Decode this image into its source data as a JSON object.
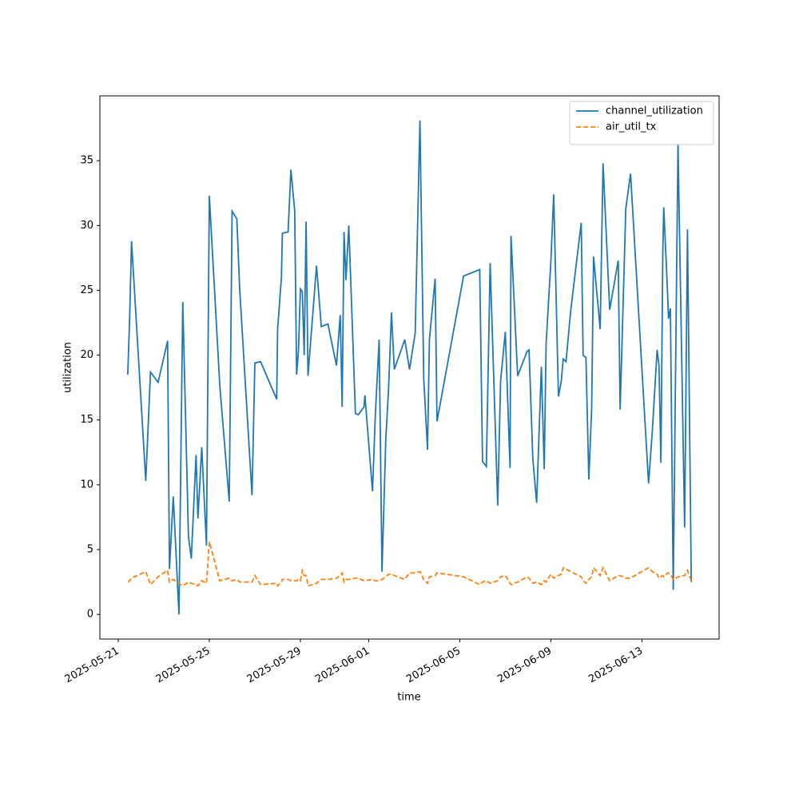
{
  "chart_data": {
    "type": "line",
    "xlabel": "time",
    "ylabel": "utilization",
    "x": [
      "2025-05-21T10:00",
      "2025-05-21T12:00",
      "2025-05-21T14:00",
      "2025-05-22T05:00",
      "2025-05-22T10:00",
      "2025-05-22T18:00",
      "2025-05-23T04:00",
      "2025-05-23T06:00",
      "2025-05-23T10:00",
      "2025-05-23T16:00",
      "2025-05-23T20:00",
      "2025-05-24T02:00",
      "2025-05-24T05:00",
      "2025-05-24T10:00",
      "2025-05-24T12:00",
      "2025-05-24T16:00",
      "2025-05-24T21:00",
      "2025-05-25T00:00",
      "2025-05-25T11:00",
      "2025-05-25T21:00",
      "2025-05-26T00:00",
      "2025-05-26T05:00",
      "2025-05-26T08:00",
      "2025-05-26T21:00",
      "2025-05-27T00:00",
      "2025-05-27T06:00",
      "2025-05-27T23:00",
      "2025-05-28T00:00",
      "2025-05-28T04:00",
      "2025-05-28T05:00",
      "2025-05-28T11:00",
      "2025-05-28T14:00",
      "2025-05-28T18:00",
      "2025-05-28T20:00",
      "2025-05-28T22:00",
      "2025-05-29T00:00",
      "2025-05-29T02:00",
      "2025-05-29T04:00",
      "2025-05-29T06:00",
      "2025-05-29T08:00",
      "2025-05-29T17:00",
      "2025-05-29T22:00",
      "2025-05-30T05:00",
      "2025-05-30T14:00",
      "2025-05-30T18:00",
      "2025-05-30T20:00",
      "2025-05-30T22:00",
      "2025-05-31T00:00",
      "2025-05-31T03:00",
      "2025-05-31T10:00",
      "2025-05-31T13:00",
      "2025-05-31T19:00",
      "2025-05-31T20:00",
      "2025-06-01T04:00",
      "2025-06-01T07:00",
      "2025-06-01T11:00",
      "2025-06-01T14:00",
      "2025-06-01T18:00",
      "2025-06-01T21:00",
      "2025-06-02T00:00",
      "2025-06-02T03:00",
      "2025-06-02T14:00",
      "2025-06-02T19:00",
      "2025-06-03T01:00",
      "2025-06-03T06:00",
      "2025-06-03T10:00",
      "2025-06-03T14:00",
      "2025-06-03T16:00",
      "2025-06-03T22:00",
      "2025-06-04T00:00",
      "2025-06-05T04:00",
      "2025-06-05T21:00",
      "2025-06-06T00:00",
      "2025-06-06T04:00",
      "2025-06-06T08:00",
      "2025-06-06T16:00",
      "2025-06-06T19:00",
      "2025-06-07T00:00",
      "2025-06-07T05:00",
      "2025-06-07T06:00",
      "2025-06-07T13:00",
      "2025-06-07T23:00",
      "2025-06-08T01:00",
      "2025-06-08T05:00",
      "2025-06-08T09:00",
      "2025-06-08T14:00",
      "2025-06-08T17:00",
      "2025-06-08T19:00",
      "2025-06-09T00:00",
      "2025-06-09T03:00",
      "2025-06-09T08:00",
      "2025-06-09T11:00",
      "2025-06-09T13:00",
      "2025-06-09T16:00",
      "2025-06-09T21:00",
      "2025-06-10T08:00",
      "2025-06-10T10:00",
      "2025-06-10T13:00",
      "2025-06-10T16:00",
      "2025-06-10T19:00",
      "2025-06-10T21:00",
      "2025-06-11T04:00",
      "2025-06-11T07:00",
      "2025-06-11T14:00",
      "2025-06-11T23:00",
      "2025-06-12T01:00",
      "2025-06-12T07:00",
      "2025-06-12T12:00",
      "2025-06-13T07:00",
      "2025-06-13T11:00",
      "2025-06-13T16:00",
      "2025-06-13T18:00",
      "2025-06-13T20:00",
      "2025-06-13T22:00",
      "2025-06-13T23:00",
      "2025-06-14T03:00",
      "2025-06-14T04:00",
      "2025-06-14T06:00",
      "2025-06-14T09:00",
      "2025-06-14T14:00",
      "2025-06-14T21:00",
      "2025-06-15T00:00",
      "2025-06-15T04:00"
    ],
    "series": [
      {
        "name": "channel_utilization",
        "color": "#1f77b4",
        "dash": "solid",
        "values": [
          18.5,
          22.8,
          28.8,
          10.3,
          18.7,
          17.9,
          21.1,
          3.5,
          9.1,
          0.0,
          24.1,
          6.0,
          4.3,
          12.3,
          7.4,
          12.9,
          5.3,
          32.3,
          17.7,
          8.7,
          31.1,
          30.5,
          25.1,
          9.2,
          19.4,
          19.5,
          16.6,
          22.0,
          26.0,
          29.4,
          29.5,
          34.3,
          31.1,
          18.5,
          20.4,
          25.1,
          24.9,
          20.0,
          30.3,
          18.4,
          26.9,
          22.2,
          22.4,
          19.2,
          23.1,
          16.0,
          29.5,
          25.8,
          30.0,
          15.5,
          15.4,
          16.0,
          16.9,
          9.5,
          15.4,
          21.2,
          3.3,
          13.5,
          17.5,
          23.3,
          18.9,
          21.2,
          18.9,
          21.7,
          38.1,
          18.2,
          12.7,
          21.2,
          25.9,
          14.9,
          26.1,
          26.6,
          11.8,
          11.4,
          27.1,
          8.4,
          18.0,
          21.8,
          11.3,
          29.2,
          18.4,
          20.3,
          20.4,
          12.0,
          8.6,
          19.1,
          11.2,
          20.9,
          27.2,
          32.4,
          16.8,
          18.0,
          19.7,
          19.5,
          23.5,
          30.2,
          20.0,
          19.8,
          10.4,
          15.9,
          27.6,
          22.0,
          34.8,
          23.5,
          27.3,
          15.8,
          31.3,
          34.0,
          10.1,
          14.2,
          20.4,
          19.2,
          11.7,
          28.0,
          31.4,
          24.8,
          22.8,
          23.6,
          1.9,
          36.3,
          6.7,
          29.7,
          2.5
        ]
      },
      {
        "name": "air_util_tx",
        "color": "#ff7f0e",
        "dash": "dashed",
        "values": [
          2.5,
          2.6,
          2.8,
          3.3,
          2.3,
          2.9,
          3.4,
          2.5,
          2.7,
          2.4,
          2.2,
          2.5,
          2.4,
          2.3,
          2.2,
          2.6,
          2.4,
          5.6,
          2.6,
          2.8,
          2.6,
          2.7,
          2.5,
          2.5,
          3.0,
          2.3,
          2.4,
          2.2,
          2.5,
          2.7,
          2.7,
          2.6,
          2.6,
          2.6,
          2.7,
          2.6,
          3.4,
          3.0,
          3.0,
          2.2,
          2.4,
          2.7,
          2.7,
          2.8,
          3.0,
          3.2,
          2.5,
          2.7,
          2.7,
          2.8,
          2.8,
          2.6,
          2.6,
          2.7,
          2.6,
          2.6,
          2.7,
          2.9,
          3.1,
          3.1,
          3.0,
          2.7,
          3.2,
          3.2,
          3.3,
          2.7,
          2.4,
          2.9,
          3.0,
          3.2,
          2.9,
          2.3,
          2.5,
          2.6,
          2.4,
          2.6,
          2.9,
          3.0,
          2.4,
          2.3,
          2.5,
          2.9,
          2.8,
          2.4,
          2.5,
          2.3,
          2.6,
          2.5,
          3.1,
          2.8,
          3.0,
          3.1,
          3.6,
          3.5,
          3.3,
          2.9,
          2.6,
          2.4,
          2.7,
          2.9,
          3.6,
          3.0,
          3.6,
          2.6,
          3.0,
          3.0,
          2.8,
          2.8,
          3.6,
          3.3,
          3.1,
          2.8,
          2.9,
          3.0,
          2.9,
          3.2,
          3.2,
          3.1,
          2.7,
          2.9,
          3.0,
          3.4,
          2.6
        ]
      }
    ],
    "xlim": [
      "2025-05-20T04:38",
      "2025-06-16T09:20"
    ],
    "xticks": [
      "2025-05-21",
      "2025-05-25",
      "2025-05-29",
      "2025-06-01",
      "2025-06-05",
      "2025-06-09",
      "2025-06-13"
    ],
    "ylim": [
      -1.9,
      40.0
    ],
    "yticks": [
      0,
      5,
      10,
      15,
      20,
      25,
      30,
      35
    ],
    "legend": "upper right",
    "grid": false
  }
}
